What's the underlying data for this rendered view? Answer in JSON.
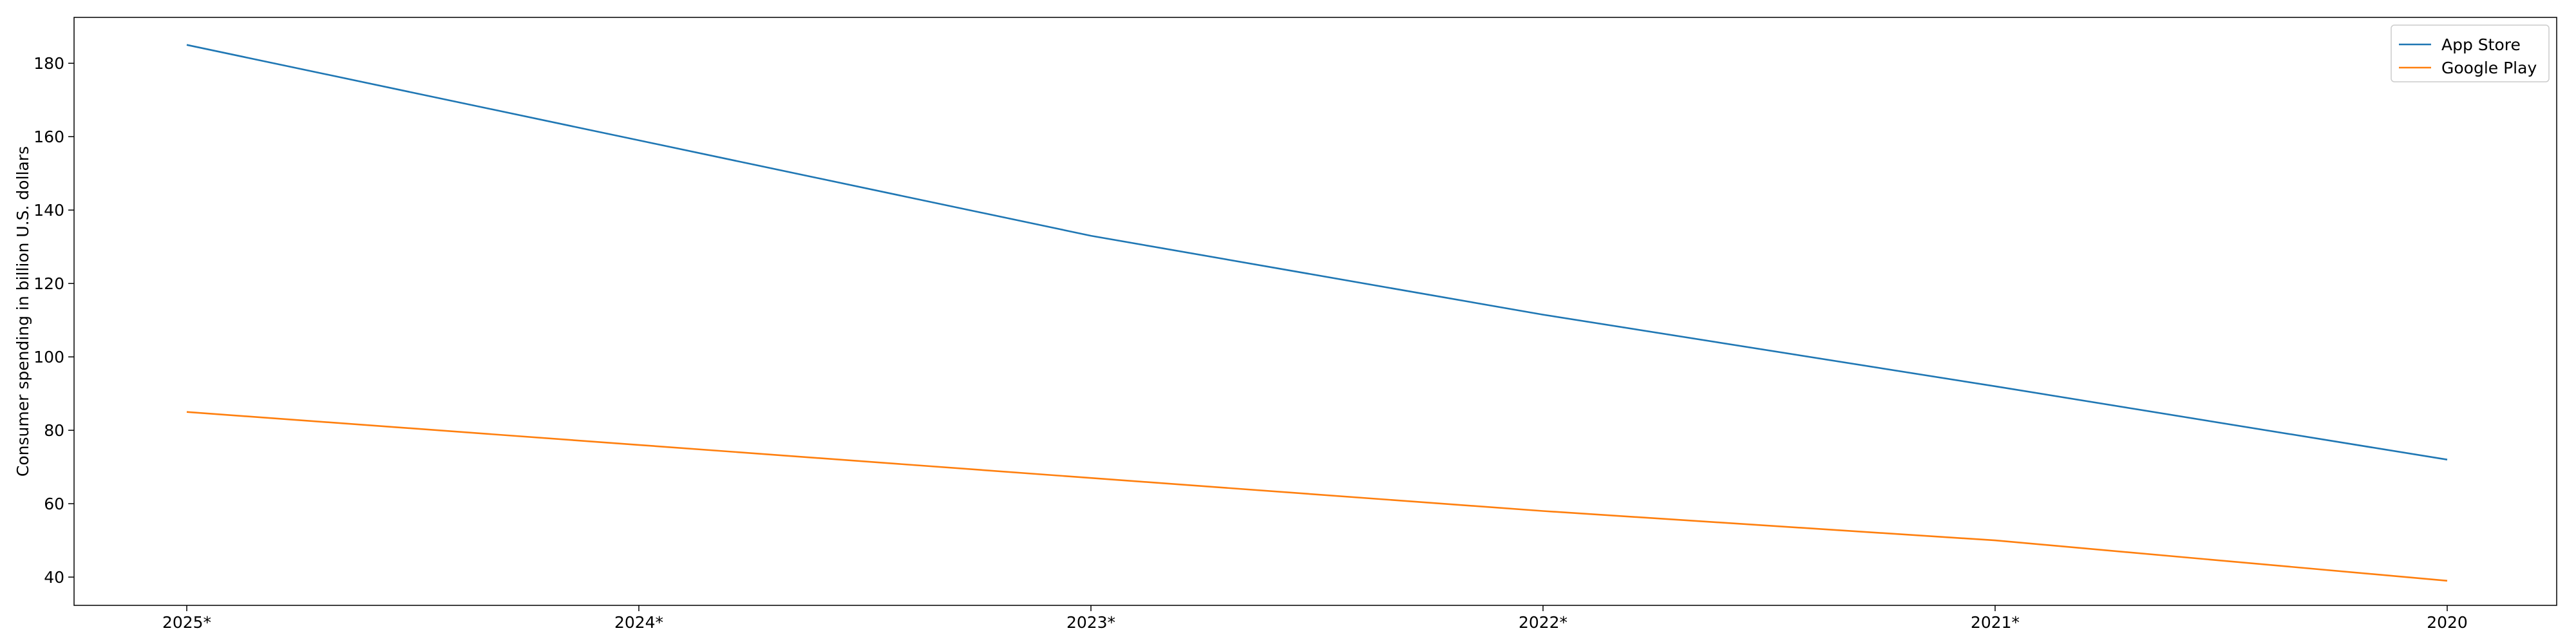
{
  "chart_data": {
    "type": "line",
    "categories": [
      "2025*",
      "2024*",
      "2023*",
      "2022*",
      "2021*",
      "2020"
    ],
    "series": [
      {
        "name": "App Store",
        "values": [
          185,
          159,
          133,
          111.5,
          92,
          72
        ],
        "color": "#1f77b4"
      },
      {
        "name": "Google Play",
        "values": [
          85,
          76,
          67,
          58,
          50,
          39
        ],
        "color": "#ff7f0e"
      }
    ],
    "xlabel": "",
    "ylabel": "Consumer spending in billion U.S. dollars",
    "yticks": [
      40,
      60,
      80,
      100,
      120,
      140,
      160,
      180
    ],
    "ylim": [
      32.3,
      192.5
    ],
    "grid": false,
    "legend_position": "top-right"
  }
}
